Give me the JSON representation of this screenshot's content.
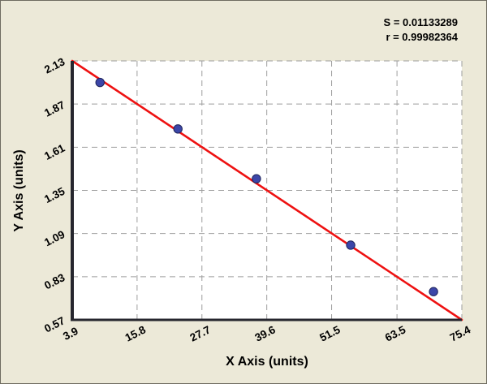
{
  "stats": {
    "s_label": "S = 0.01133289",
    "r_label": "r = 0.99982364"
  },
  "chart_data": {
    "type": "scatter",
    "title": "",
    "xlabel": "X Axis (units)",
    "ylabel": "Y Axis (units)",
    "xlim": [
      3.9,
      75.4
    ],
    "ylim": [
      0.57,
      2.13
    ],
    "x_ticks": [
      3.9,
      15.8,
      27.7,
      39.6,
      51.5,
      63.5,
      75.4
    ],
    "y_ticks": [
      0.57,
      0.83,
      1.09,
      1.35,
      1.61,
      1.87,
      2.13
    ],
    "grid": "dashed",
    "legend": "none",
    "points": [
      {
        "x": 9.0,
        "y": 2.0
      },
      {
        "x": 23.3,
        "y": 1.72
      },
      {
        "x": 37.7,
        "y": 1.42
      },
      {
        "x": 55.0,
        "y": 1.02
      },
      {
        "x": 70.2,
        "y": 0.74
      }
    ],
    "fit_line": {
      "x1": 3.9,
      "y1": 2.13,
      "x2": 75.4,
      "y2": 0.57
    },
    "fit_stats": {
      "S": 0.01133289,
      "r": 0.99982364
    },
    "colors": {
      "point": "#3c46a8",
      "point_edge": "#20255c",
      "line": "#ee1111",
      "background": "#ece9d8",
      "plot_background": "#ffffff",
      "grid": "#9e9e9e",
      "axis": "#26262e"
    }
  }
}
